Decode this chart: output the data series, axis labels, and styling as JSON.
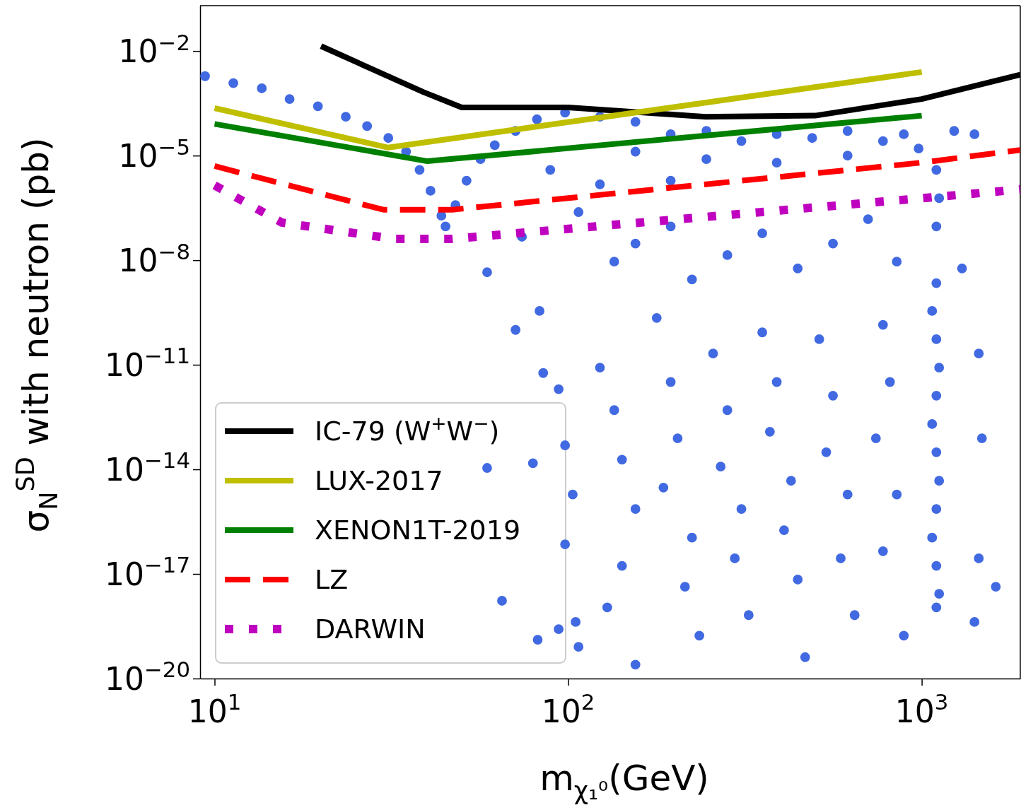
{
  "chart_data": {
    "type": "scatter",
    "xlabel": "m$_{χ₁⁰}$(GeV)",
    "ylabel": "σ$_{N}$$^{SD}$ with neutron (pb)",
    "log": "xy",
    "legend": "bottom left",
    "xlim": [
      9.1,
      1900
    ],
    "ylim": [
      1e-20,
      0.2
    ],
    "xticks": [
      {
        "value": 10,
        "label": "10$^{1}$"
      },
      {
        "value": 100,
        "label": "10$^{2}$"
      },
      {
        "value": 1000,
        "label": "10$^{3}$"
      }
    ],
    "yticks": [
      {
        "value": 1e-20,
        "label": "10$^{−20}$"
      },
      {
        "value": 1e-17,
        "label": "10$^{−17}$"
      },
      {
        "value": 1e-14,
        "label": "10$^{−14}$"
      },
      {
        "value": 1e-11,
        "label": "10$^{−11}$"
      },
      {
        "value": 1e-08,
        "label": "10$^{−8}$"
      },
      {
        "value": 1e-05,
        "label": "10$^{−5}$"
      },
      {
        "value": 0.01,
        "label": "10$^{−2}$"
      }
    ],
    "series": [
      {
        "type": "scatter",
        "marker": "circle",
        "color": "#4169e1",
        "x": [
          9.4,
          11.3,
          13.6,
          16.3,
          19.6,
          23.5,
          27,
          31,
          34.8,
          38,
          40.8,
          43.8,
          45,
          48,
          51.6,
          56.5,
          62,
          71,
          81.6,
          98,
          123,
          155,
          195,
          246,
          309,
          389,
          490,
          617,
          777,
          890,
          1235,
          1410,
          155,
          246,
          389,
          617,
          980,
          89,
          123,
          195,
          59,
          74,
          107,
          135,
          155,
          195,
          224,
          282,
          354,
          446,
          561,
          705,
          850,
          1100,
          1100,
          1100,
          1100,
          1100,
          1100,
          1100,
          1100,
          1100,
          1120,
          1070,
          1120,
          1070,
          1120,
          1070,
          1120,
          71,
          83,
          85,
          94,
          98,
          103,
          98,
          105,
          107,
          123,
          135,
          142,
          155,
          142,
          129,
          155,
          178,
          195,
          204,
          186,
          224,
          214,
          235,
          257,
          282,
          270,
          309,
          296,
          324,
          354,
          389,
          372,
          427,
          408,
          446,
          468,
          513,
          561,
          537,
          617,
          590,
          646,
          777,
          813,
          742,
          850,
          777,
          890,
          1300,
          1450,
          1480,
          1450,
          1410,
          1620,
          59,
          79.5,
          65,
          82,
          94
        ],
        "values": [
          0.0019,
          0.0012,
          0.00085,
          0.00042,
          0.00026,
          0.00013,
          7e-05,
          3.2e-05,
          1.3e-05,
          3.9e-06,
          9.8e-07,
          1.9e-07,
          9.3e-08,
          3.8e-07,
          1.9e-06,
          7.9e-06,
          2e-05,
          5.1e-05,
          0.00011,
          0.00017,
          0.00013,
          9.3e-05,
          4.1e-05,
          5.1e-05,
          2.6e-05,
          4.1e-05,
          3.2e-05,
          5.1e-05,
          2.6e-05,
          4.1e-05,
          5.1e-05,
          4.1e-05,
          1.3e-05,
          7.9e-06,
          6.3e-06,
          1e-05,
          1.6e-05,
          3.9e-06,
          1.5e-06,
          1.9e-06,
          4.5e-09,
          4.7e-08,
          2.4e-07,
          9.1e-09,
          3e-08,
          9.3e-08,
          2.8e-09,
          1.4e-08,
          5.9e-08,
          5.8e-09,
          3e-08,
          1.5e-07,
          9.1e-09,
          3.9e-06,
          9.3e-08,
          2.2e-09,
          5.4e-11,
          1.3e-12,
          3.1e-14,
          7.3e-16,
          1.7e-17,
          1.1e-18,
          6e-07,
          3.5e-10,
          8.3e-12,
          2e-13,
          4.7e-15,
          1.1e-16,
          2.7e-18,
          1e-10,
          3.5e-10,
          5.8e-12,
          2e-12,
          4.9e-14,
          1.9e-15,
          7.1e-17,
          4.2e-19,
          8.1e-20,
          8.3e-12,
          5e-13,
          1.9e-14,
          7.3e-16,
          1.7e-17,
          1.1e-18,
          2.5e-20,
          2.2e-10,
          3.2e-12,
          7.8e-14,
          3e-15,
          1.1e-16,
          4.3e-18,
          1.7e-19,
          2.1e-11,
          5e-13,
          1.2e-14,
          7.3e-16,
          2.8e-17,
          6.6e-19,
          8.5e-11,
          3.2e-12,
          1.2e-13,
          4.7e-15,
          1.8e-16,
          6.9e-18,
          4.1e-20,
          5.4e-11,
          1.3e-12,
          3.1e-14,
          1.9e-15,
          2.8e-17,
          6.6e-19,
          1.4e-10,
          3.2e-12,
          7.8e-14,
          1.9e-15,
          4.5e-17,
          1.7e-19,
          5.8e-09,
          2.1e-11,
          7.8e-14,
          2.8e-17,
          4.2e-19,
          4.3e-18,
          1.1e-14,
          1.5e-14,
          1.7e-18,
          1.3e-19,
          2.6e-19
        ]
      },
      {
        "type": "line",
        "name": "IC-79 (W$^{+}$W$^{−}$)",
        "color": "#000000",
        "line_style": "solid",
        "x": [
          20,
          39,
          50,
          100,
          245,
          500,
          1000,
          1900
        ],
        "values": [
          0.0138,
          0.00066,
          0.00024,
          0.00024,
          0.00013,
          0.00014,
          0.00042,
          0.0021
        ]
      },
      {
        "type": "line",
        "name": "LUX-2017",
        "color": "#bfbf00",
        "line_style": "solid",
        "x": [
          10,
          31,
          1000
        ],
        "values": [
          0.00023,
          1.7e-05,
          0.0025
        ]
      },
      {
        "type": "line",
        "name": "XENON1T-2019",
        "color": "#008000",
        "line_style": "solid",
        "x": [
          10,
          40,
          1000
        ],
        "values": [
          8.1e-05,
          6.9e-06,
          0.00014
        ]
      },
      {
        "type": "line",
        "name": "LZ",
        "color": "#ff0000",
        "line_style": "dashed",
        "x": [
          10,
          30,
          47,
          1000,
          1900
        ],
        "values": [
          5e-06,
          2.8e-07,
          2.8e-07,
          6.3e-06,
          1.45e-05
        ]
      },
      {
        "type": "line",
        "name": "DARWIN",
        "color": "#bf00bf",
        "line_style": "dotted",
        "x": [
          10,
          15.5,
          32,
          47,
          1000,
          1900
        ],
        "values": [
          1.4e-06,
          1.2e-07,
          4.1e-08,
          4.1e-08,
          6e-07,
          1.07e-06
        ]
      }
    ]
  }
}
